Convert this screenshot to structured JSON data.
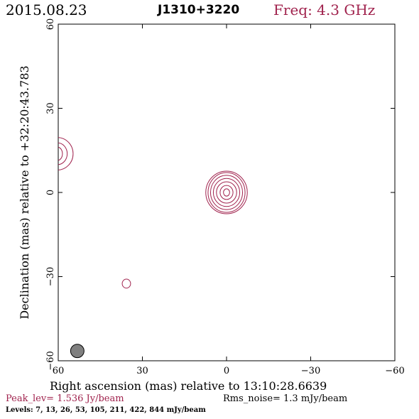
{
  "header": {
    "date": "2015.08.23",
    "source": "J1310+3220",
    "freq": "Freq: 4.3 GHz"
  },
  "colors": {
    "accent": "#a0224d",
    "beam_fill": "#808080",
    "text": "#000000"
  },
  "chart_data": {
    "type": "contour",
    "xlabel": "Right ascension (mas) relative to 13:10:28.6639",
    "ylabel": "Declination (mas) relative to +32:20:43.783",
    "xlim": [
      60,
      -60
    ],
    "ylim": [
      -60,
      60
    ],
    "x_ticks": [
      60,
      30,
      0,
      -30,
      -60
    ],
    "y_ticks": [
      -60,
      -30,
      0,
      30,
      60
    ],
    "x_tick_labels": [
      "60",
      "30",
      "0",
      "−30",
      "−60"
    ],
    "y_tick_labels": [
      "−60",
      "−30",
      "0",
      "30",
      "60"
    ],
    "components": [
      {
        "x": 0,
        "y": 0,
        "contours": [
          {
            "rx": 1.1,
            "ry": 1.3
          },
          {
            "rx": 2.3,
            "ry": 2.5
          },
          {
            "rx": 3.6,
            "ry": 3.8
          },
          {
            "rx": 4.7,
            "ry": 5.0
          },
          {
            "rx": 5.7,
            "ry": 6.1
          },
          {
            "rx": 6.6,
            "ry": 7.1
          },
          {
            "rx": 7.4,
            "ry": 7.6
          }
        ]
      },
      {
        "x": 35.7,
        "y": -32.5,
        "contours": [
          {
            "rx": 1.5,
            "ry": 1.6
          }
        ]
      },
      {
        "x": 60.3,
        "y": 13.8,
        "contours": [
          {
            "rx": 1.8,
            "ry": 2.4
          },
          {
            "rx": 3.5,
            "ry": 3.9
          },
          {
            "rx": 5.6,
            "ry": 5.8
          }
        ]
      }
    ],
    "beam": {
      "x": 53.2,
      "y": -56.5,
      "rx": 2.4,
      "ry": 2.4
    }
  },
  "footer": {
    "peak": "Peak_lev=  1.536 Jy/beam",
    "rms": "Rms_noise=  1.3 mJy/beam",
    "levels": "Levels:   7,  13,  26,  53, 105, 211, 422, 844  mJy/beam"
  }
}
